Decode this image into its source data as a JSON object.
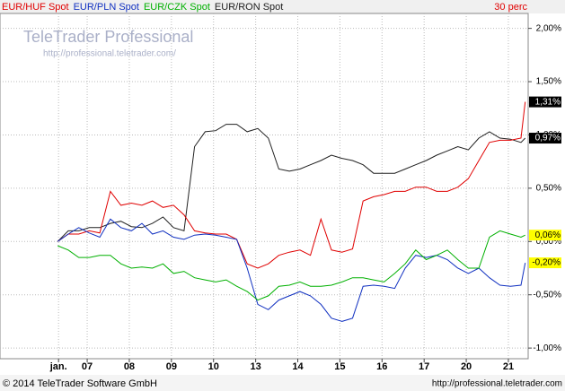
{
  "header": {
    "interval": "30 perc"
  },
  "watermark": {
    "title": "TeleTrader Professional",
    "url": "http://professional.teletrader.com/"
  },
  "footer": {
    "copyright": "© 2014 TeleTrader Software GmbH",
    "url": "http://professional.teletrader.com"
  },
  "chart_data": {
    "type": "line",
    "x": [
      0.3,
      0.55,
      0.8,
      1.05,
      1.3,
      1.55,
      1.8,
      2.05,
      2.3,
      2.55,
      2.8,
      3.05,
      3.3,
      3.55,
      3.8,
      4.05,
      4.3,
      4.55,
      4.8,
      5.05,
      5.3,
      5.55,
      5.8,
      6.05,
      6.3,
      6.55,
      6.8,
      7.05,
      7.3,
      7.55,
      7.8,
      8.05,
      8.3,
      8.55,
      8.8,
      9.05,
      9.3,
      9.55,
      9.8,
      10.05,
      10.3,
      10.55,
      10.8,
      11.05,
      11.3,
      11.4
    ],
    "xlim": [
      -1.07,
      11.47
    ],
    "xticks": [
      {
        "value": 0.32,
        "label": "jan."
      },
      {
        "value": 1,
        "label": "07"
      },
      {
        "value": 2,
        "label": "08"
      },
      {
        "value": 3,
        "label": "09"
      },
      {
        "value": 4,
        "label": "10"
      },
      {
        "value": 5,
        "label": "13"
      },
      {
        "value": 6,
        "label": "14"
      },
      {
        "value": 7,
        "label": "15"
      },
      {
        "value": 8,
        "label": "16"
      },
      {
        "value": 9,
        "label": "17"
      },
      {
        "value": 10,
        "label": "20"
      },
      {
        "value": 11,
        "label": "21"
      }
    ],
    "ylim": [
      -1.1,
      2.14
    ],
    "yticks": [
      {
        "value": 2,
        "label": "2,00%"
      },
      {
        "value": 1.5,
        "label": "1,50%"
      },
      {
        "value": 1,
        "label": "1,00%"
      },
      {
        "value": 0.5,
        "label": "0,50%"
      },
      {
        "value": 0,
        "label": "0,00%"
      },
      {
        "value": -0.5,
        "label": "-0,50%"
      },
      {
        "value": -1,
        "label": "-1,00%"
      }
    ],
    "grid": true,
    "series": [
      {
        "name": "EUR/RON Spot",
        "color": "#202020",
        "label_background": "#000000",
        "values": [
          0,
          0.1,
          0.1,
          0.13,
          0.13,
          0.17,
          0.19,
          0.14,
          0.13,
          0.17,
          0.23,
          0.13,
          0.1,
          0.89,
          1.03,
          1.04,
          1.1,
          1.1,
          1.03,
          1.06,
          0.97,
          0.68,
          0.66,
          0.68,
          0.72,
          0.76,
          0.81,
          0.78,
          0.76,
          0.72,
          0.64,
          0.64,
          0.64,
          0.68,
          0.72,
          0.76,
          0.81,
          0.85,
          0.89,
          0.86,
          0.97,
          1.03,
          0.97,
          0.96,
          0.93,
          0.97
        ],
        "value_labels": [
          null,
          null,
          null,
          null,
          null,
          null,
          null,
          null,
          null,
          null,
          null,
          null,
          null,
          null,
          null,
          null,
          null,
          null,
          null,
          null,
          null,
          null,
          null,
          null,
          null,
          null,
          null,
          null,
          null,
          null,
          null,
          null,
          null,
          null,
          null,
          null,
          null,
          null,
          null,
          null,
          null,
          null,
          null,
          null,
          null,
          "0,97%"
        ]
      },
      {
        "name": "EUR/HUF Spot",
        "color": "#e00000",
        "label_background": "#000000",
        "values": [
          0,
          0.07,
          0.07,
          0.1,
          0.08,
          0.47,
          0.34,
          0.36,
          0.34,
          0.38,
          0.32,
          0.34,
          0.25,
          0.1,
          0.08,
          0.07,
          0.07,
          0.02,
          -0.21,
          -0.25,
          -0.21,
          -0.13,
          -0.1,
          -0.08,
          -0.13,
          0.21,
          -0.08,
          -0.1,
          -0.07,
          0.38,
          0.42,
          0.44,
          0.47,
          0.47,
          0.51,
          0.51,
          0.47,
          0.47,
          0.51,
          0.59,
          0.76,
          0.93,
          0.95,
          0.95,
          0.97,
          1.31
        ],
        "value_labels": [
          null,
          null,
          null,
          null,
          null,
          null,
          null,
          null,
          null,
          null,
          null,
          null,
          null,
          null,
          null,
          null,
          null,
          null,
          null,
          null,
          null,
          null,
          null,
          null,
          null,
          null,
          null,
          null,
          null,
          null,
          null,
          null,
          null,
          null,
          null,
          null,
          null,
          null,
          null,
          null,
          null,
          null,
          null,
          null,
          null,
          "1,31%"
        ]
      },
      {
        "name": "EUR/PLN Spot",
        "color": "#1030c0",
        "label_background": "#ffff00",
        "values": [
          0,
          0.07,
          0.13,
          0.08,
          0.04,
          0.21,
          0.13,
          0.1,
          0.17,
          0.07,
          0.1,
          0.04,
          0.02,
          0.06,
          0.07,
          0.06,
          0.04,
          0.02,
          -0.25,
          -0.59,
          -0.64,
          -0.55,
          -0.51,
          -0.47,
          -0.51,
          -0.59,
          -0.72,
          -0.75,
          -0.72,
          -0.42,
          -0.41,
          -0.42,
          -0.44,
          -0.25,
          -0.13,
          -0.15,
          -0.13,
          -0.17,
          -0.25,
          -0.3,
          -0.25,
          -0.34,
          -0.41,
          -0.42,
          -0.41,
          -0.2
        ],
        "value_labels": [
          null,
          null,
          null,
          null,
          null,
          null,
          null,
          null,
          null,
          null,
          null,
          null,
          null,
          null,
          null,
          null,
          null,
          null,
          null,
          null,
          null,
          null,
          null,
          null,
          null,
          null,
          null,
          null,
          null,
          null,
          null,
          null,
          null,
          null,
          null,
          null,
          null,
          null,
          null,
          null,
          null,
          null,
          null,
          null,
          null,
          "-0,20%"
        ]
      },
      {
        "name": "EUR/CZK Spot",
        "color": "#00b000",
        "label_background": "#ffff00",
        "values": [
          -0.04,
          -0.08,
          -0.15,
          -0.15,
          -0.13,
          -0.13,
          -0.21,
          -0.25,
          -0.24,
          -0.25,
          -0.21,
          -0.3,
          -0.28,
          -0.34,
          -0.36,
          -0.38,
          -0.36,
          -0.42,
          -0.47,
          -0.55,
          -0.51,
          -0.42,
          -0.41,
          -0.38,
          -0.42,
          -0.42,
          -0.41,
          -0.38,
          -0.34,
          -0.34,
          -0.36,
          -0.38,
          -0.3,
          -0.21,
          -0.08,
          -0.17,
          -0.13,
          -0.08,
          -0.17,
          -0.25,
          -0.25,
          0.04,
          0.1,
          0.07,
          0.04,
          0.06
        ],
        "value_labels": [
          null,
          null,
          null,
          null,
          null,
          null,
          null,
          null,
          null,
          null,
          null,
          null,
          null,
          null,
          null,
          null,
          null,
          null,
          null,
          null,
          null,
          null,
          null,
          null,
          null,
          null,
          null,
          null,
          null,
          null,
          null,
          null,
          null,
          null,
          null,
          null,
          null,
          null,
          null,
          null,
          null,
          null,
          null,
          null,
          null,
          "0,06%"
        ]
      }
    ],
    "legend_order": [
      1,
      2,
      3,
      0
    ]
  }
}
